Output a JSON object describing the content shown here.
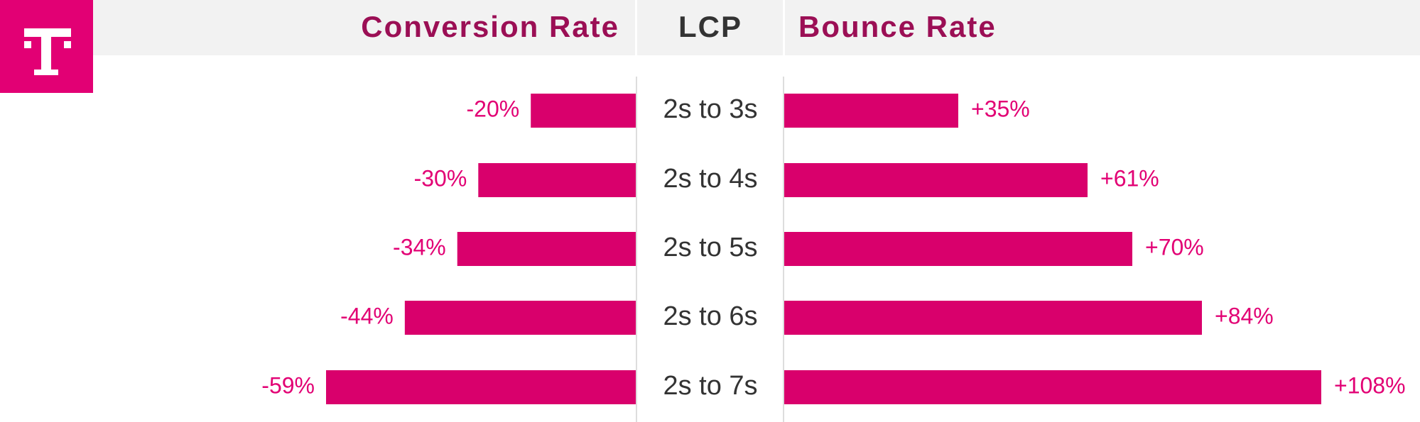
{
  "chart_data": {
    "type": "butterfly",
    "category_title": "LCP",
    "categories": [
      "2s to 3s",
      "2s to 4s",
      "2s to 5s",
      "2s to 6s",
      "2s to 7s"
    ],
    "series": [
      {
        "name": "Conversion Rate",
        "color": "#d9006c",
        "title_color": "#9b0f55",
        "values": [
          -20,
          -30,
          -34,
          -44,
          -59
        ],
        "value_labels": [
          "-20%",
          "-30%",
          "-34%",
          "-44%",
          "-59%"
        ]
      },
      {
        "name": "Bounce Rate",
        "color": "#d9006c",
        "title_color": "#9b0f55",
        "values": [
          35,
          61,
          70,
          84,
          108
        ],
        "value_labels": [
          "+35%",
          "+61%",
          "+70%",
          "+84%",
          "+108%"
        ]
      }
    ]
  }
}
